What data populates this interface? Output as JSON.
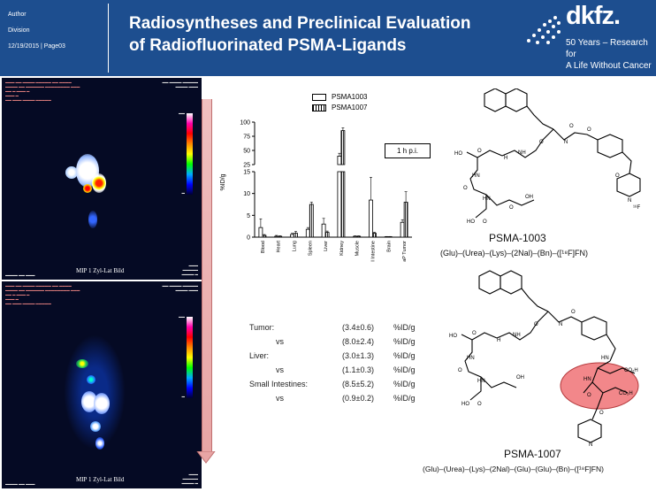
{
  "header": {
    "author": "Author",
    "division": "Division",
    "date_page": "12/19/2015 | Page03",
    "title_line1": "Radiosyntheses and Preclinical Evaluation",
    "title_line2": "of Radiofluorinated PSMA-Ligands",
    "logo": "dkfz.",
    "tagline_line1": "50 Years – Research for",
    "tagline_line2": "A Life Without Cancer",
    "colors": {
      "header_bg": "#1d4e8f",
      "text": "#ffffff"
    }
  },
  "scans": [
    {
      "mip_label": "MIP 1 Zyl-Lat Bild"
    },
    {
      "mip_label": "MIP 1 Zyl-Lat Bild"
    }
  ],
  "legend": [
    {
      "label": "PSMA1003"
    },
    {
      "label": "PSMA1007"
    }
  ],
  "time_label": "1 h p.i.",
  "chart_data": {
    "type": "bar",
    "ylabel": "%ID/g",
    "categories": [
      "Blood",
      "Heart",
      "Lung",
      "Spleen",
      "Liver",
      "Kidney",
      "Muscle",
      "Small Intestine",
      "Brain",
      "LNCaP Tumor"
    ],
    "series": [
      {
        "name": "PSMA1003",
        "values": [
          2.2,
          0.2,
          0.6,
          1.8,
          3.0,
          40,
          0.2,
          8.5,
          0.1,
          3.4
        ],
        "errors": [
          2.0,
          0.2,
          0.3,
          0.4,
          1.3,
          5,
          0.1,
          5.2,
          0.05,
          0.6
        ]
      },
      {
        "name": "PSMA1007",
        "values": [
          0.4,
          0.2,
          0.9,
          7.5,
          1.1,
          85,
          0.2,
          0.9,
          0.1,
          8.0
        ],
        "errors": [
          0.2,
          0.1,
          0.4,
          0.5,
          0.3,
          5,
          0.1,
          0.2,
          0.05,
          2.4
        ]
      }
    ],
    "lower_range": [
      0,
      15
    ],
    "upper_range": [
      25,
      100
    ],
    "lower_ticks": [
      0,
      5,
      10,
      15
    ],
    "upper_ticks": [
      25,
      50,
      75,
      100
    ]
  },
  "stats": [
    {
      "label": "Tumor:",
      "value": "(3.4±0.6)",
      "unit": "%ID/g",
      "indent": false
    },
    {
      "label": "vs",
      "value": "(8.0±2.4)",
      "unit": "%ID/g",
      "indent": true
    },
    {
      "label": "Liver:",
      "value": "(3.0±1.3)",
      "unit": "%ID/g",
      "indent": false
    },
    {
      "label": "vs",
      "value": "(1.1±0.3)",
      "unit": "%ID/g",
      "indent": true
    },
    {
      "label": "Small Intestines:",
      "value": "(8.5±5.2)",
      "unit": "%ID/g",
      "indent": false
    },
    {
      "label": "vs",
      "value": "(0.9±0.2)",
      "unit": "%ID/g",
      "indent": true
    }
  ],
  "compounds": [
    {
      "name": "PSMA-1003",
      "sequence": "(Glu)–(Urea)–(Lys)–(2Nal)–(Bn)–([¹⁸F]FN)"
    },
    {
      "name": "PSMA-1007",
      "sequence": "(Glu)–(Urea)–(Lys)–(2Nal)–(Glu)–(Glu)–(Bn)–([¹⁸F]FN)"
    }
  ]
}
